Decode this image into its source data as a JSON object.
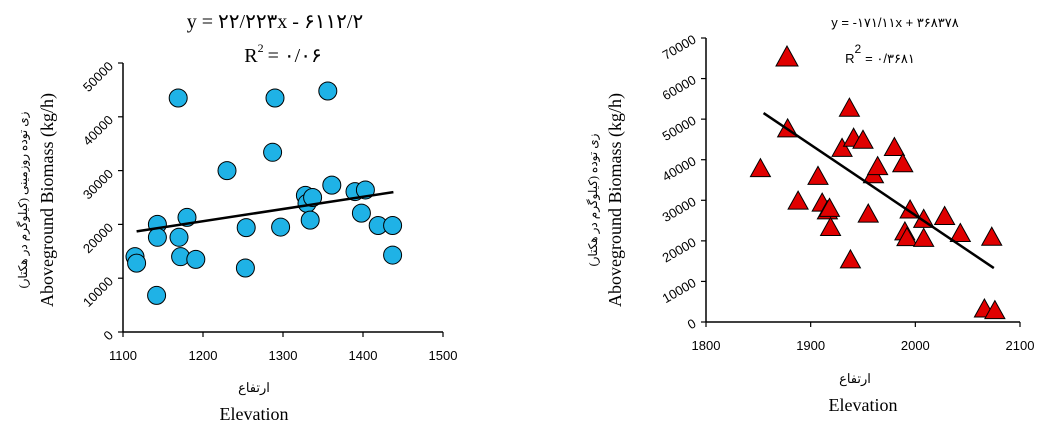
{
  "chart_data": [
    {
      "type": "scatter",
      "title": "",
      "xlabel": "Elevation",
      "xlabel_fa": "ارتفاع",
      "ylabel": "Aboveground Biomass (kg/h)",
      "ylabel_fa": "زی توده روزمینی (کیلوگرم در هکتار)",
      "equation": "y = ۲۲/۲۲۳x - ۶۱۱۲/۲",
      "r2_label": "R",
      "r2_sup": "2",
      "r2_value": "= ۰/۰۶",
      "xlim": [
        1100,
        1500
      ],
      "ylim": [
        0,
        50000
      ],
      "xticks": [
        1100,
        1200,
        1300,
        1400,
        1500
      ],
      "yticks": [
        0,
        10000,
        20000,
        30000,
        40000,
        50000
      ],
      "xtick_labels": [
        "1100",
        "1200",
        "1300",
        "1400",
        "1500"
      ],
      "ytick_labels": [
        "0",
        "10000",
        "20000",
        "30000",
        "40000",
        "50000"
      ],
      "marker": "circle",
      "marker_color": "#1FB2E6",
      "trendline": {
        "x": [
          1117,
          1438
        ],
        "y": [
          18700,
          26000
        ]
      },
      "points": [
        {
          "x": 1115,
          "y": 14000
        },
        {
          "x": 1117,
          "y": 12800
        },
        {
          "x": 1142,
          "y": 6800
        },
        {
          "x": 1143,
          "y": 20000
        },
        {
          "x": 1143,
          "y": 17600
        },
        {
          "x": 1169,
          "y": 43500
        },
        {
          "x": 1170,
          "y": 17600
        },
        {
          "x": 1172,
          "y": 14000
        },
        {
          "x": 1180,
          "y": 21300
        },
        {
          "x": 1191,
          "y": 13500
        },
        {
          "x": 1230,
          "y": 30000
        },
        {
          "x": 1253,
          "y": 11900
        },
        {
          "x": 1254,
          "y": 19400
        },
        {
          "x": 1287,
          "y": 33400
        },
        {
          "x": 1290,
          "y": 43500
        },
        {
          "x": 1297,
          "y": 19500
        },
        {
          "x": 1328,
          "y": 25400
        },
        {
          "x": 1330,
          "y": 23900
        },
        {
          "x": 1334,
          "y": 20800
        },
        {
          "x": 1337,
          "y": 25000
        },
        {
          "x": 1356,
          "y": 44800
        },
        {
          "x": 1361,
          "y": 27300
        },
        {
          "x": 1390,
          "y": 26100
        },
        {
          "x": 1398,
          "y": 22100
        },
        {
          "x": 1403,
          "y": 26400
        },
        {
          "x": 1419,
          "y": 19800
        },
        {
          "x": 1437,
          "y": 19800
        },
        {
          "x": 1437,
          "y": 14300
        }
      ]
    },
    {
      "type": "scatter",
      "title": "",
      "xlabel": "Elevation",
      "xlabel_fa": "ارتفاع",
      "ylabel": "Aboveground Biomass (kg/h)",
      "ylabel_fa": "زی توده (کیلوگرم در هکتار)",
      "equation": "y = -۱۷۱/۱۱x + ۳۶۸۳۷۸",
      "r2_label": "R",
      "r2_sup": "2",
      "r2_value": "= ۰/۳۶۸۱",
      "xlim": [
        1800,
        2100
      ],
      "ylim": [
        0,
        70000
      ],
      "xticks": [
        1800,
        1900,
        2000,
        2100
      ],
      "yticks": [
        0,
        10000,
        20000,
        30000,
        40000,
        50000,
        60000,
        70000
      ],
      "xtick_labels": [
        "1800",
        "1900",
        "2000",
        "2100"
      ],
      "ytick_labels": [
        "0",
        "10000",
        "20000",
        "30000",
        "40000",
        "50000",
        "60000",
        "70000"
      ],
      "marker": "triangle",
      "marker_color": "#E00000",
      "trendline": {
        "x": [
          1855,
          2075
        ],
        "y": [
          51500,
          13300
        ]
      },
      "points": [
        {
          "x": 1852,
          "y": 37800
        },
        {
          "x": 1878,
          "y": 47600
        },
        {
          "x": 1888,
          "y": 29800
        },
        {
          "x": 1907,
          "y": 35900
        },
        {
          "x": 1911,
          "y": 29300
        },
        {
          "x": 1916,
          "y": 27400
        },
        {
          "x": 1918,
          "y": 28000
        },
        {
          "x": 1919,
          "y": 23300
        },
        {
          "x": 1930,
          "y": 42800
        },
        {
          "x": 1937,
          "y": 52700
        },
        {
          "x": 1938,
          "y": 15300
        },
        {
          "x": 1941,
          "y": 45300
        },
        {
          "x": 1950,
          "y": 44800
        },
        {
          "x": 1955,
          "y": 26600
        },
        {
          "x": 1960,
          "y": 36300
        },
        {
          "x": 1964,
          "y": 38300
        },
        {
          "x": 1980,
          "y": 43000
        },
        {
          "x": 1988,
          "y": 39000
        },
        {
          "x": 1990,
          "y": 22200
        },
        {
          "x": 1992,
          "y": 20800
        },
        {
          "x": 1995,
          "y": 27600
        },
        {
          "x": 2008,
          "y": 20600
        },
        {
          "x": 2008,
          "y": 25300
        },
        {
          "x": 2028,
          "y": 26000
        },
        {
          "x": 2043,
          "y": 21800
        },
        {
          "x": 2066,
          "y": 3200
        },
        {
          "x": 2073,
          "y": 20900
        },
        {
          "x": 2076,
          "y": 2800
        }
      ]
    }
  ]
}
